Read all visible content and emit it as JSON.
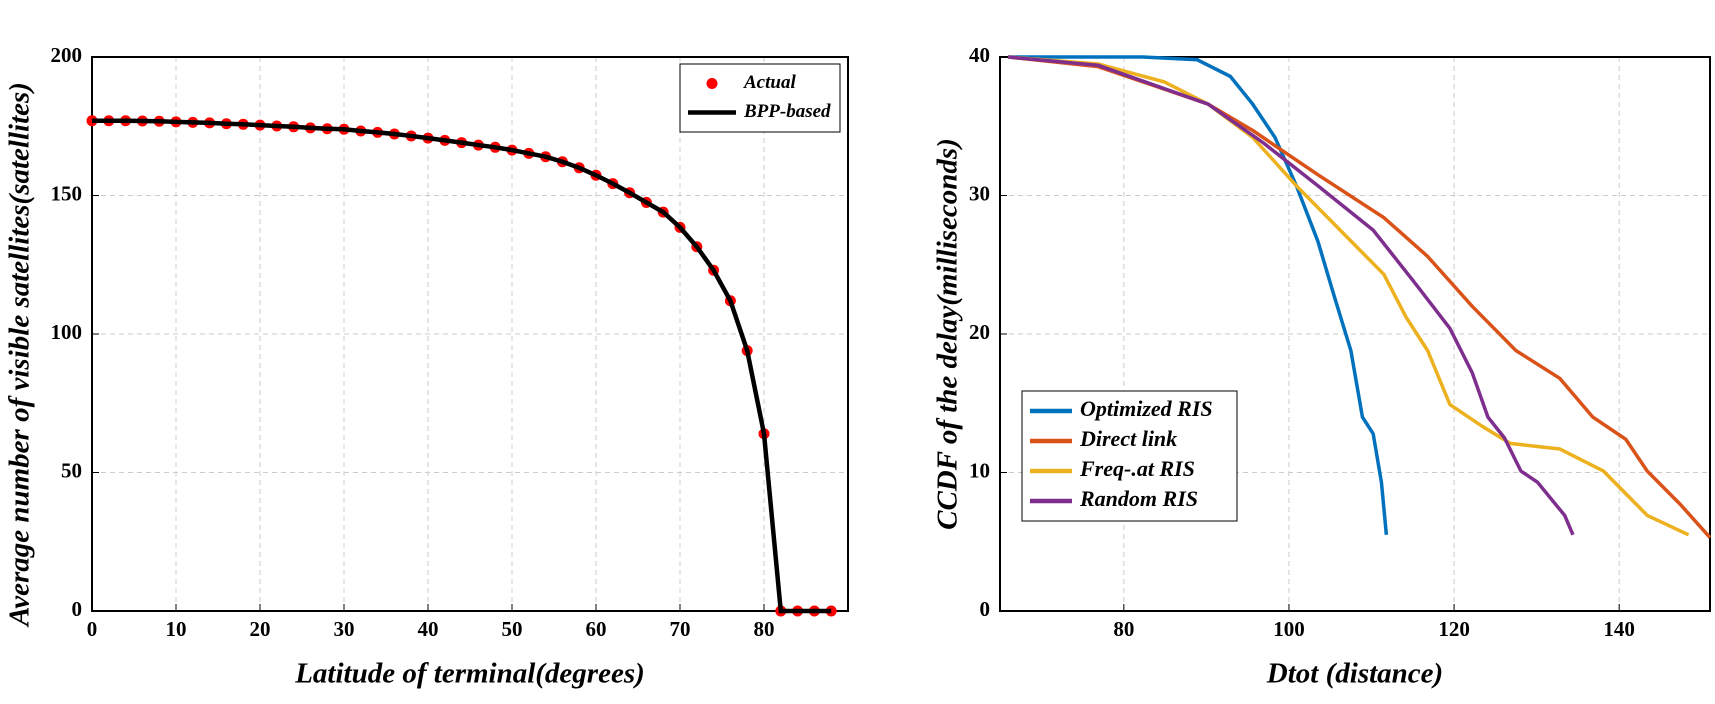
{
  "chart_data": [
    {
      "type": "line",
      "xlabel": "Latitude of terminal(degrees)",
      "ylabel": "Average number of visible satellites(satellites)",
      "xlim": [
        0,
        90
      ],
      "ylim": [
        0,
        200
      ],
      "xticks": [
        0,
        10,
        20,
        30,
        40,
        50,
        60,
        70,
        80
      ],
      "yticks": [
        0,
        50,
        100,
        150,
        200
      ],
      "grid": true,
      "legend": "upper right",
      "series": [
        {
          "name": "Actual",
          "color": "#ff0000",
          "mode": "markers",
          "x": [
            0,
            2,
            4,
            6,
            8,
            10,
            12,
            14,
            16,
            18,
            20,
            22,
            24,
            26,
            28,
            30,
            32,
            34,
            36,
            38,
            40,
            42,
            44,
            46,
            48,
            50,
            52,
            54,
            56,
            58,
            60,
            62,
            64,
            66,
            68,
            70,
            72,
            74,
            76,
            78,
            80,
            82,
            84,
            86,
            88
          ],
          "values": [
            177,
            177,
            177,
            176.9,
            176.8,
            176.6,
            176.4,
            176.2,
            175.9,
            175.7,
            175.4,
            175.1,
            174.8,
            174.4,
            174.1,
            173.9,
            173.3,
            172.8,
            172.2,
            171.5,
            170.7,
            169.9,
            169.1,
            168.2,
            167.4,
            166.4,
            165.2,
            164,
            162.2,
            160,
            157.3,
            154.3,
            151,
            147.5,
            144,
            138.5,
            131.5,
            123,
            112,
            94,
            64,
            0,
            0,
            0,
            0
          ]
        },
        {
          "name": "BPP-based",
          "color": "#000000",
          "mode": "line",
          "x": [
            0,
            2,
            4,
            6,
            8,
            10,
            12,
            14,
            16,
            18,
            20,
            22,
            24,
            26,
            28,
            30,
            32,
            34,
            36,
            38,
            40,
            42,
            44,
            46,
            48,
            50,
            52,
            54,
            56,
            58,
            60,
            62,
            64,
            66,
            68,
            70,
            72,
            74,
            76,
            78,
            80,
            82,
            84,
            86,
            88
          ],
          "values": [
            177,
            177,
            177,
            176.9,
            176.8,
            176.6,
            176.4,
            176.2,
            175.9,
            175.7,
            175.4,
            175.1,
            174.8,
            174.4,
            174.1,
            173.9,
            173.3,
            172.8,
            172.2,
            171.5,
            170.7,
            169.9,
            169.1,
            168.2,
            167.4,
            166.4,
            165.2,
            164,
            162.2,
            160,
            157.3,
            154.3,
            151,
            147.5,
            144,
            138.5,
            131.5,
            123,
            112,
            94,
            64,
            0,
            0,
            0,
            0
          ]
        }
      ]
    },
    {
      "type": "line",
      "xlabel": "Dtot (distance)",
      "ylabel": "CCDF of the delay(milliseconds)",
      "xlim": [
        65,
        151
      ],
      "ylim": [
        0,
        40
      ],
      "xticks": [
        80,
        100,
        120,
        140
      ],
      "yticks": [
        0,
        10,
        20,
        30,
        40
      ],
      "grid": true,
      "legend": "lower left",
      "series": [
        {
          "name": "Optimized RIS",
          "color": "#0072bd",
          "mode": "line",
          "x": [
            66,
            82.3,
            88.9,
            92.9,
            95.6,
            98.3,
            100.9,
            103.5,
            105.5,
            107.5,
            108.9,
            110.2,
            111.2,
            111.8
          ],
          "values": [
            40,
            40,
            39.8,
            38.6,
            36.6,
            34.2,
            30.7,
            26.7,
            22.7,
            18.8,
            14,
            12.8,
            9.3,
            5.5
          ]
        },
        {
          "name": "Direct link",
          "color": "#d95319",
          "mode": "line",
          "x": [
            66,
            76.9,
            90.2,
            95.6,
            103.5,
            111.5,
            116.8,
            122.2,
            127.5,
            132.8,
            136.8,
            140.8,
            143.4,
            147.4,
            151
          ],
          "values": [
            40,
            39.3,
            36.6,
            34.7,
            31.5,
            28.4,
            25.6,
            22,
            18.8,
            16.8,
            14,
            12.4,
            10.1,
            7.7,
            5.3
          ]
        },
        {
          "name": "Freq-.at RIS",
          "color": "#edb120",
          "mode": "line",
          "x": [
            66,
            76.9,
            84.9,
            90.2,
            95.6,
            100.9,
            106.2,
            111.5,
            114.2,
            116.8,
            119.5,
            123.5,
            126.8,
            132.8,
            138.1,
            143.4,
            148.4
          ],
          "values": [
            40,
            39.5,
            38.2,
            36.6,
            34.2,
            30.7,
            27.5,
            24.3,
            21.2,
            18.8,
            14.9,
            13.3,
            12.1,
            11.7,
            10.1,
            6.9,
            5.5
          ]
        },
        {
          "name": "Random RIS",
          "color": "#7e2f8e",
          "mode": "line",
          "x": [
            66,
            76.9,
            90.2,
            96.9,
            103.5,
            110.2,
            115.5,
            119.5,
            122.2,
            124.1,
            126.1,
            128.1,
            130.1,
            133.4,
            134.4
          ],
          "values": [
            40,
            39.4,
            36.6,
            33.8,
            30.7,
            27.5,
            23.5,
            20.4,
            17.2,
            14,
            12.5,
            10.1,
            9.3,
            6.9,
            5.5
          ]
        }
      ]
    }
  ]
}
